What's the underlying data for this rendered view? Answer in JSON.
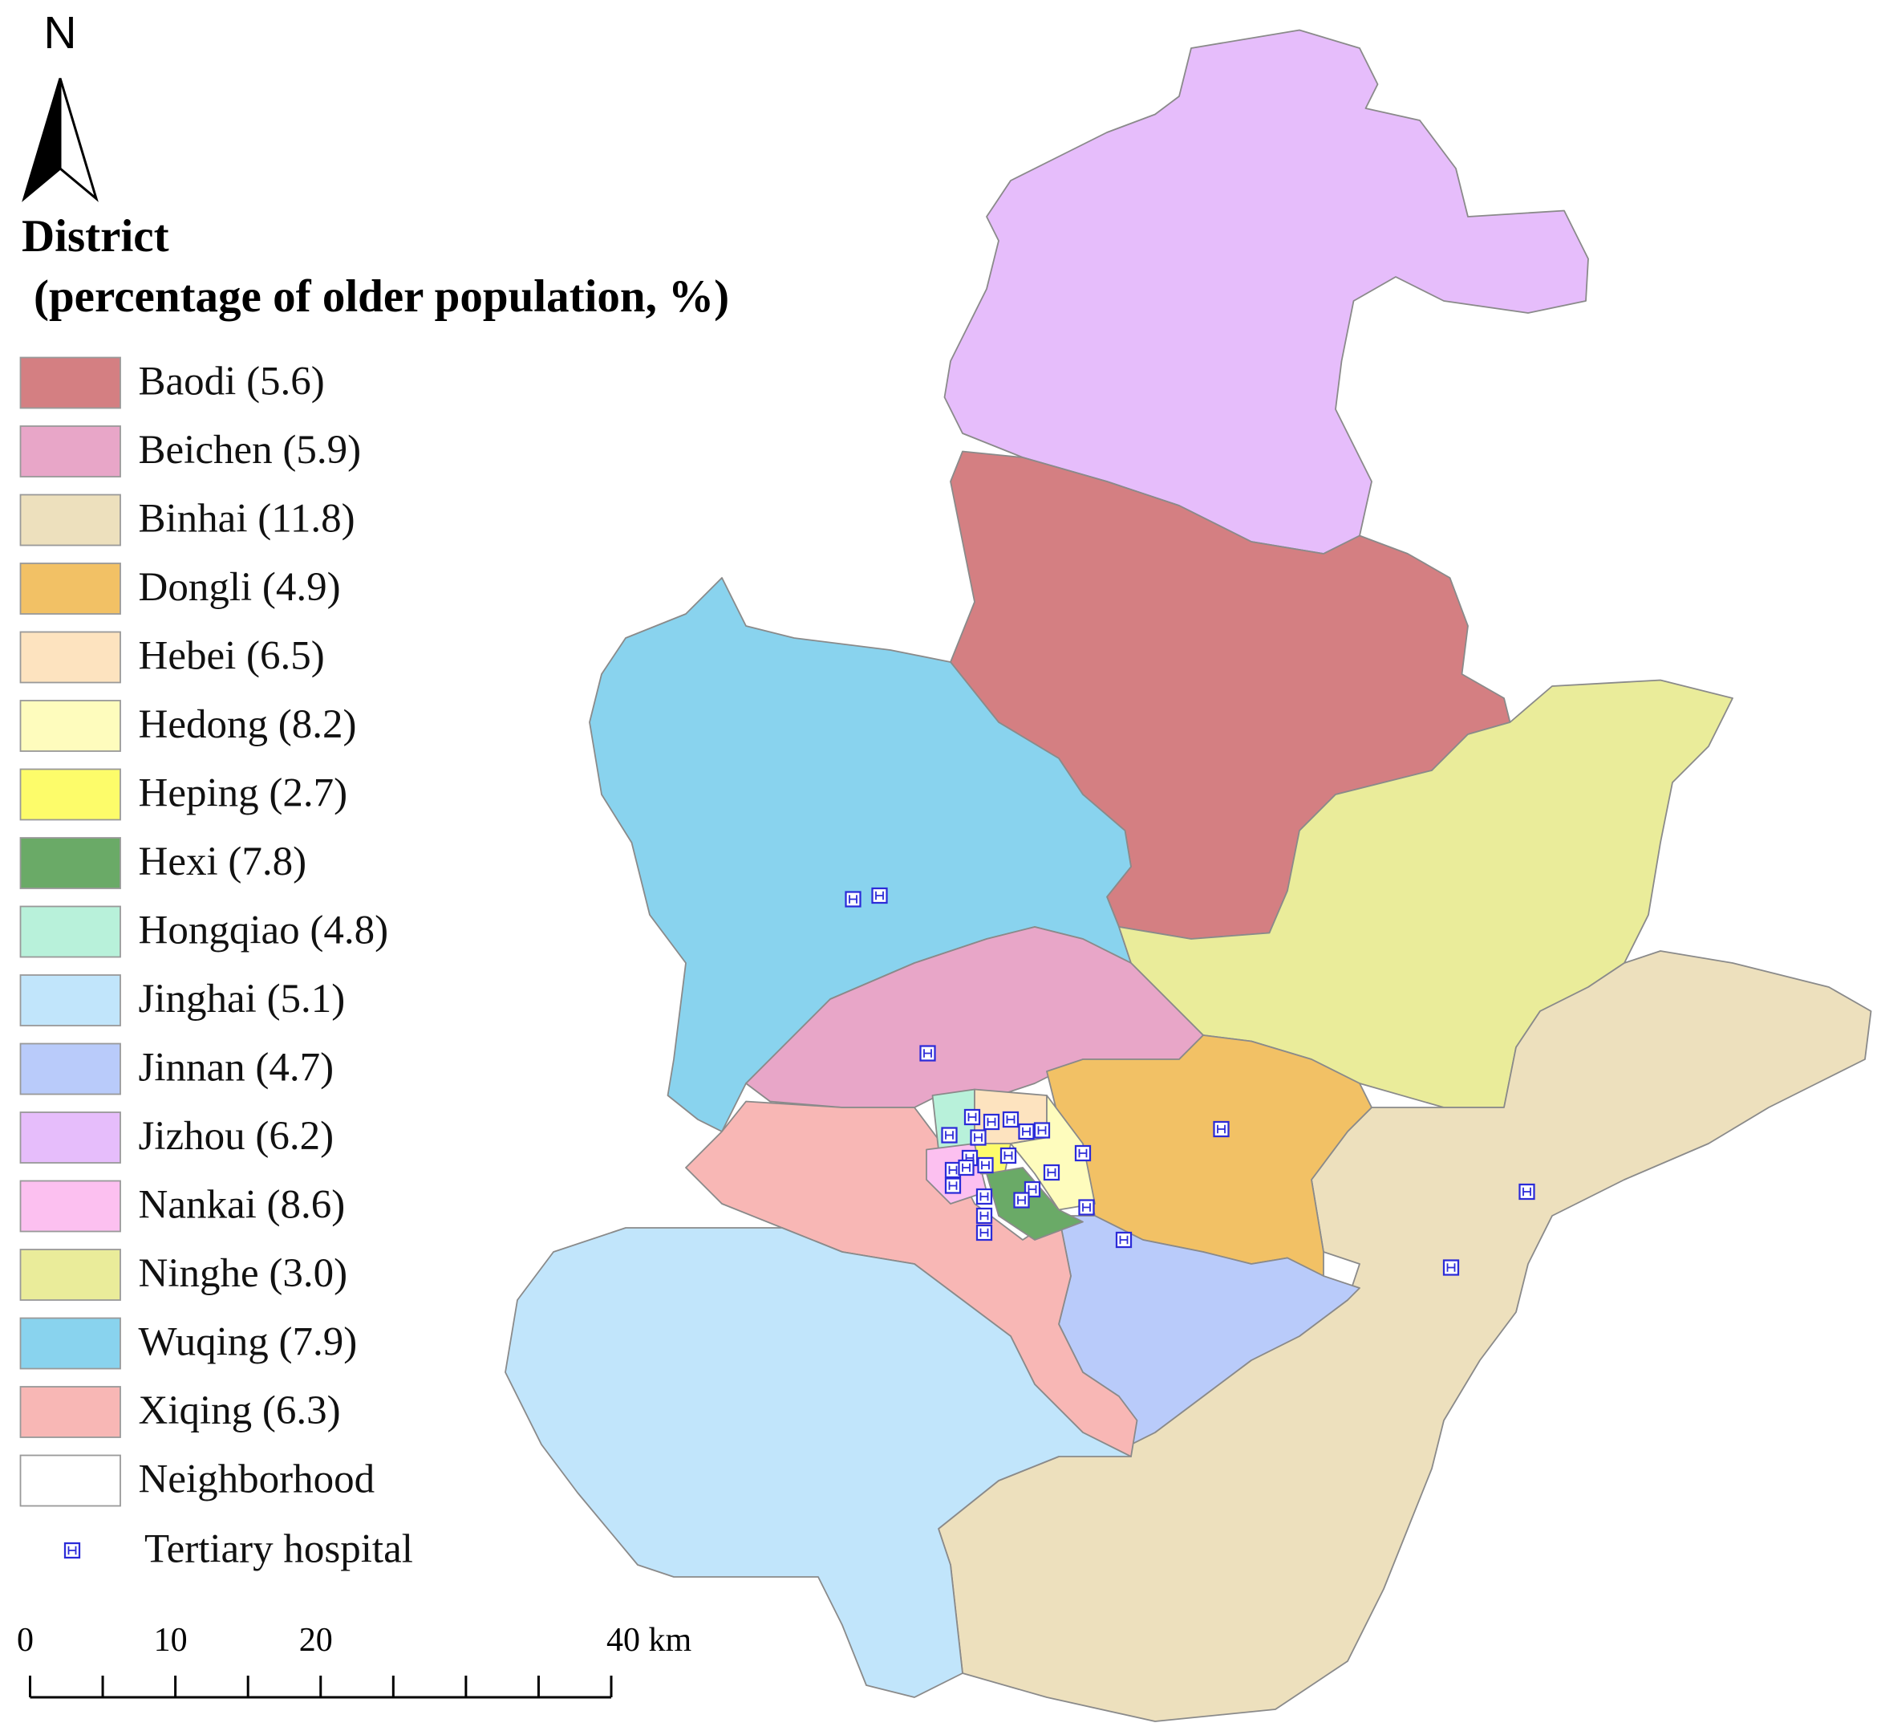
{
  "north": "N",
  "legend": {
    "title": "District",
    "subtitle": "(percentage of older population, %)",
    "districts": [
      {
        "label": "Baodi (5.6)",
        "color": "#d47f82"
      },
      {
        "label": "Beichen (5.9)",
        "color": "#e8a6c8"
      },
      {
        "label": "Binhai (11.8)",
        "color": "#ede0bd"
      },
      {
        "label": "Dongli (4.9)",
        "color": "#f2c165"
      },
      {
        "label": "Hebei (6.5)",
        "color": "#fde3bf"
      },
      {
        "label": "Hedong (8.2)",
        "color": "#fefcbd"
      },
      {
        "label": "Heping (2.7)",
        "color": "#fdfc6a"
      },
      {
        "label": "Hexi (7.8)",
        "color": "#6aaa67"
      },
      {
        "label": "Hongqiao (4.8)",
        "color": "#b8f1da"
      },
      {
        "label": "Jinghai (5.1)",
        "color": "#c1e5fb"
      },
      {
        "label": "Jinnan (4.7)",
        "color": "#b9cbfa"
      },
      {
        "label": "Jizhou (6.2)",
        "color": "#e6bdfb"
      },
      {
        "label": "Nankai (8.6)",
        "color": "#fcc0f0"
      },
      {
        "label": "Ninghe (3.0)",
        "color": "#eaec9a"
      },
      {
        "label": "Wuqing (7.9)",
        "color": "#89d3ee"
      },
      {
        "label": "Xiqing (6.3)",
        "color": "#f8b7b5"
      }
    ],
    "neighborhood": "Neighborhood",
    "hospital": "Tertiary hospital"
  },
  "scale_bar": {
    "ticks": [
      0,
      5,
      10,
      15,
      20,
      25,
      30,
      35,
      40
    ],
    "labels": [
      0,
      10,
      20,
      {
        "value": 40,
        "label": "40 km"
      }
    ]
  }
}
